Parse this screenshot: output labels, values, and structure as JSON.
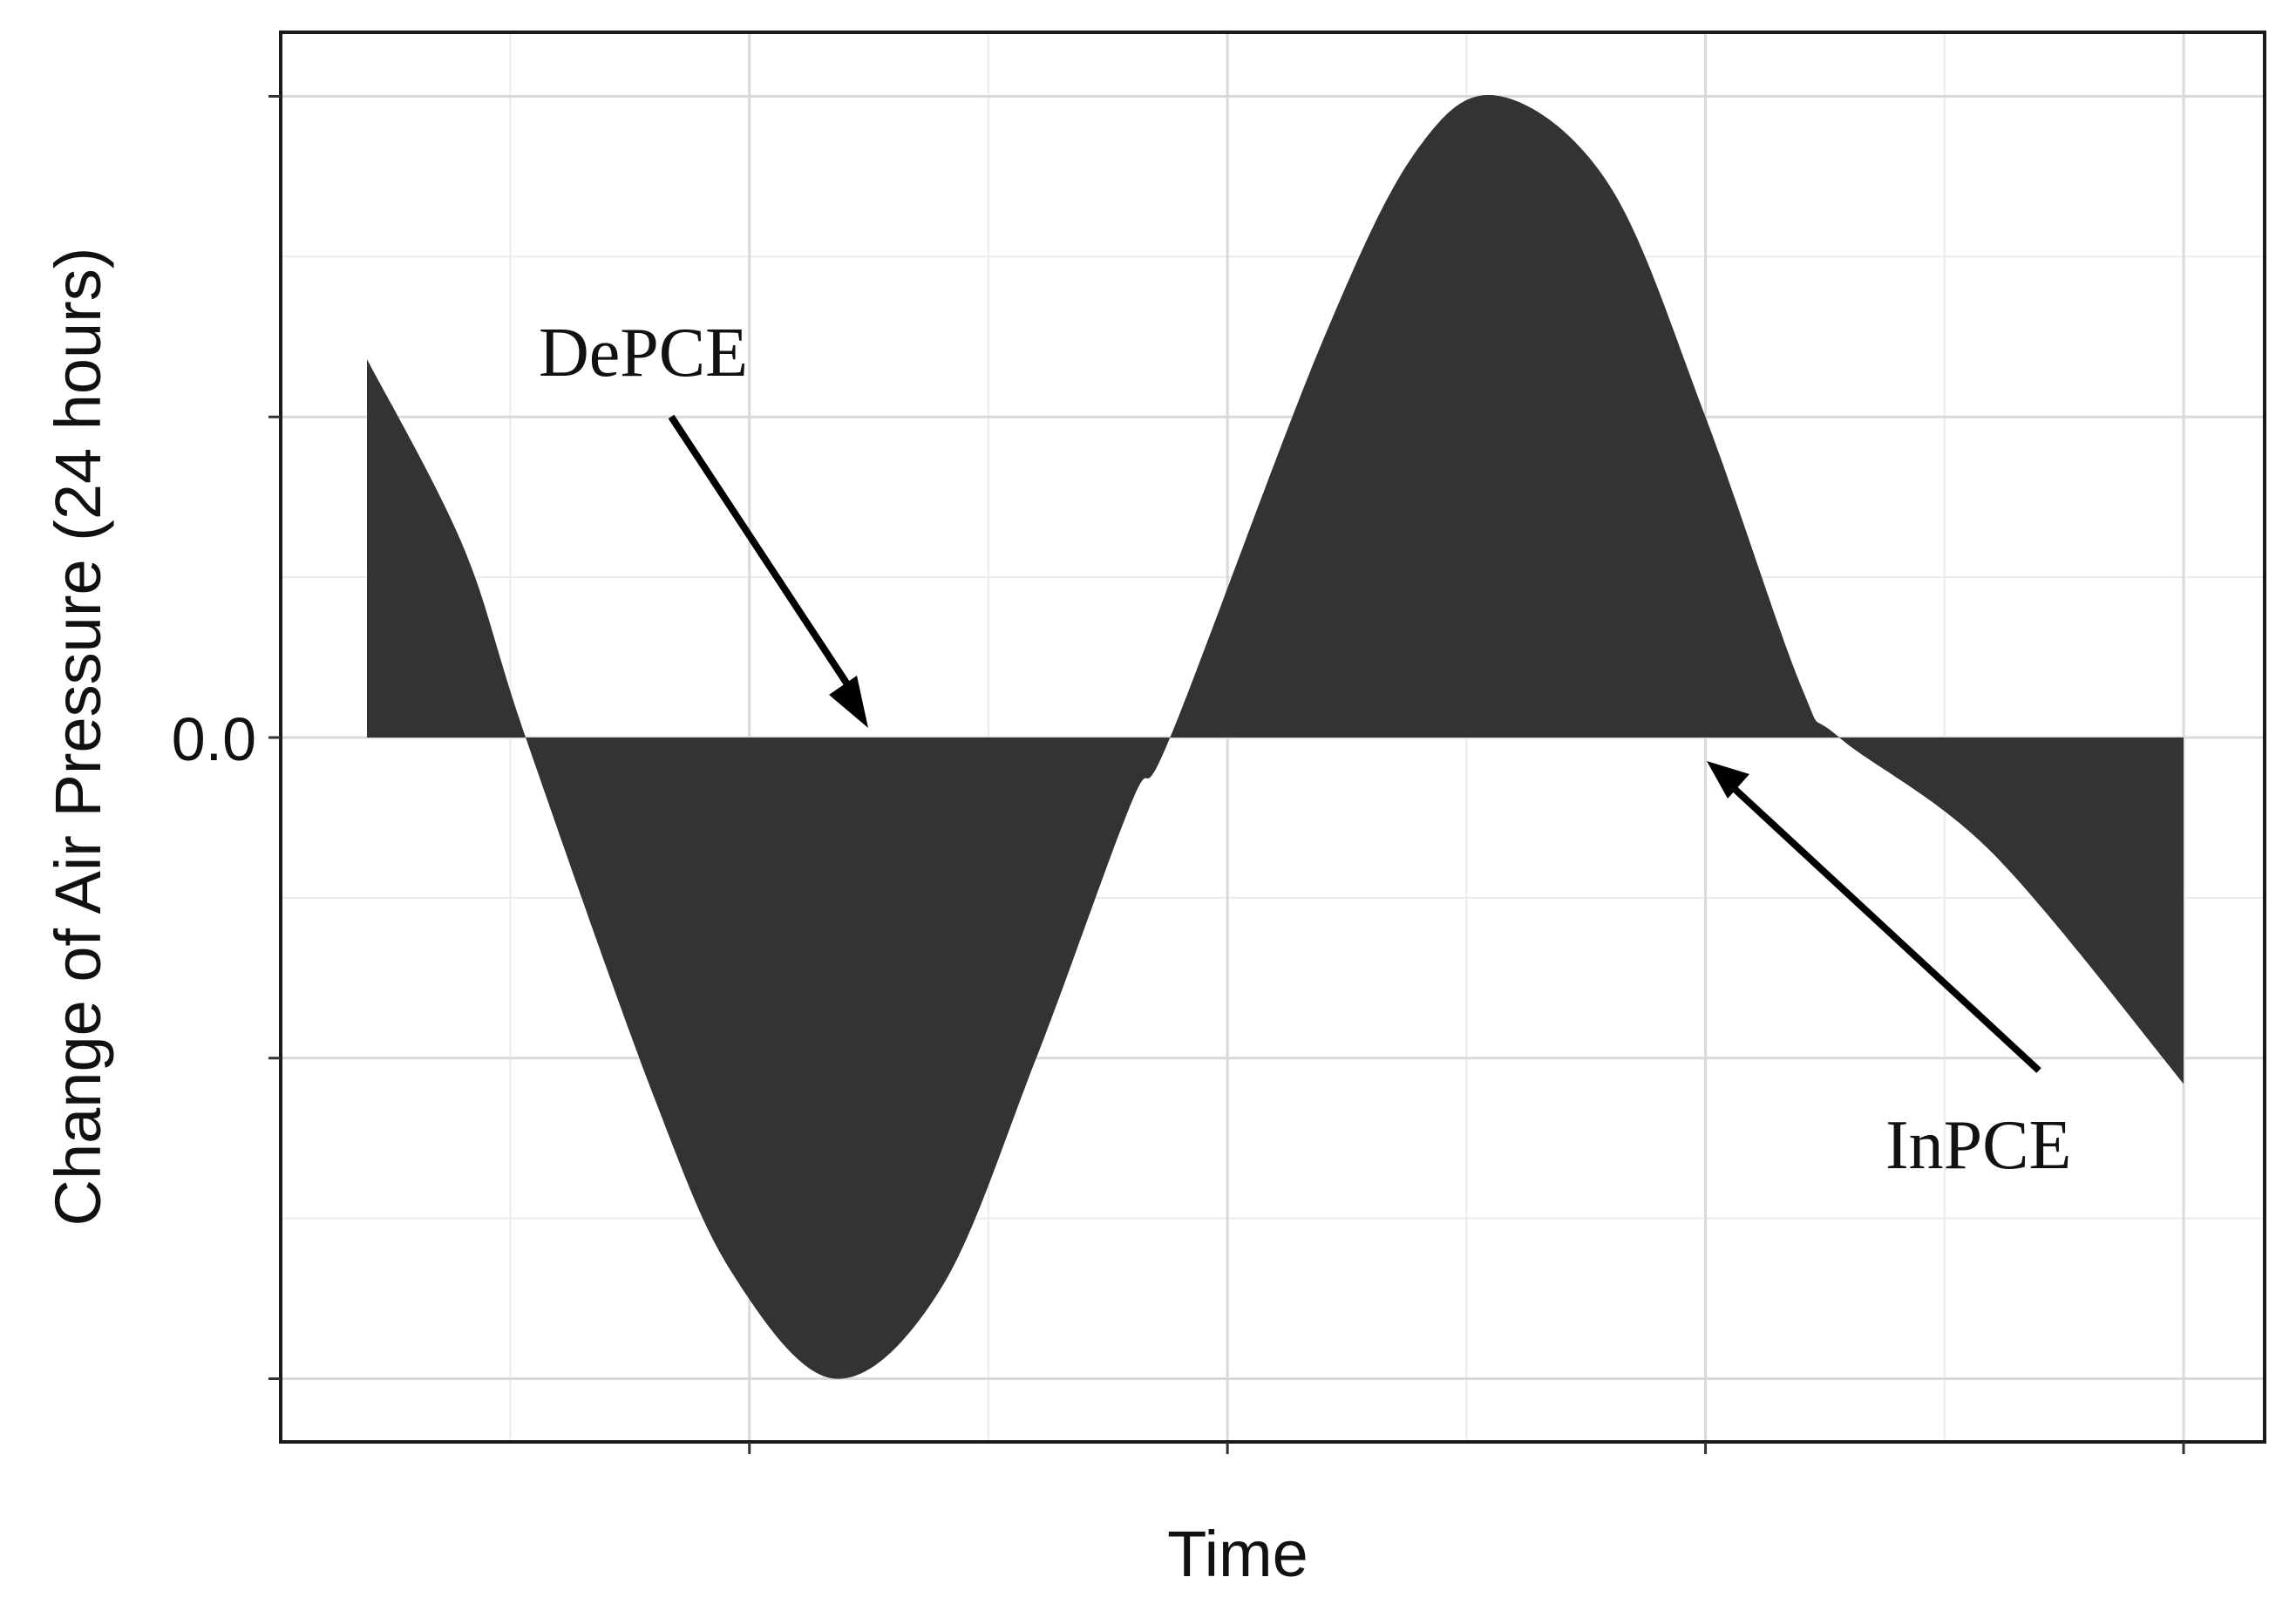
{
  "chart_data": {
    "type": "area",
    "title": "",
    "xlabel": "Time",
    "ylabel": "Change of Air Pressure (24 hours)",
    "xlim": [
      0,
      1
    ],
    "ylim": [
      -1.1,
      1.1
    ],
    "y_ticks": [
      -1,
      -0.5,
      0,
      0.5,
      1
    ],
    "y_tick_labels": [
      "",
      "",
      "0.0",
      "",
      ""
    ],
    "x_ticks": [
      0.25,
      0.5,
      0.75,
      1.0
    ],
    "x_tick_labels": [
      "",
      "",
      "",
      ""
    ],
    "grid": true,
    "fill_color": "#333333",
    "baseline": 0,
    "curve": {
      "x_start": 0.05,
      "x_end": 1.0,
      "y_start": 0.59,
      "y_end": -0.54,
      "points": [
        [
          0.05,
          0.59
        ],
        [
          0.1,
          0.3
        ],
        [
          0.133,
          0.0
        ],
        [
          0.2,
          -0.56
        ],
        [
          0.242,
          -0.84
        ],
        [
          0.295,
          -1.0
        ],
        [
          0.35,
          -0.86
        ],
        [
          0.4,
          -0.5
        ],
        [
          0.45,
          -0.1
        ],
        [
          0.47,
          0.0
        ],
        [
          0.55,
          0.62
        ],
        [
          0.6,
          0.92
        ],
        [
          0.643,
          1.0
        ],
        [
          0.7,
          0.86
        ],
        [
          0.75,
          0.5
        ],
        [
          0.8,
          0.08
        ],
        [
          0.82,
          0.0
        ],
        [
          0.9,
          -0.18
        ],
        [
          1.0,
          -0.54
        ]
      ]
    },
    "annotations": [
      {
        "label": "DePCE",
        "points_to": [
          0.303,
          0.0
        ]
      },
      {
        "label": "InPCE",
        "points_to": [
          0.75,
          0.0
        ]
      }
    ]
  }
}
